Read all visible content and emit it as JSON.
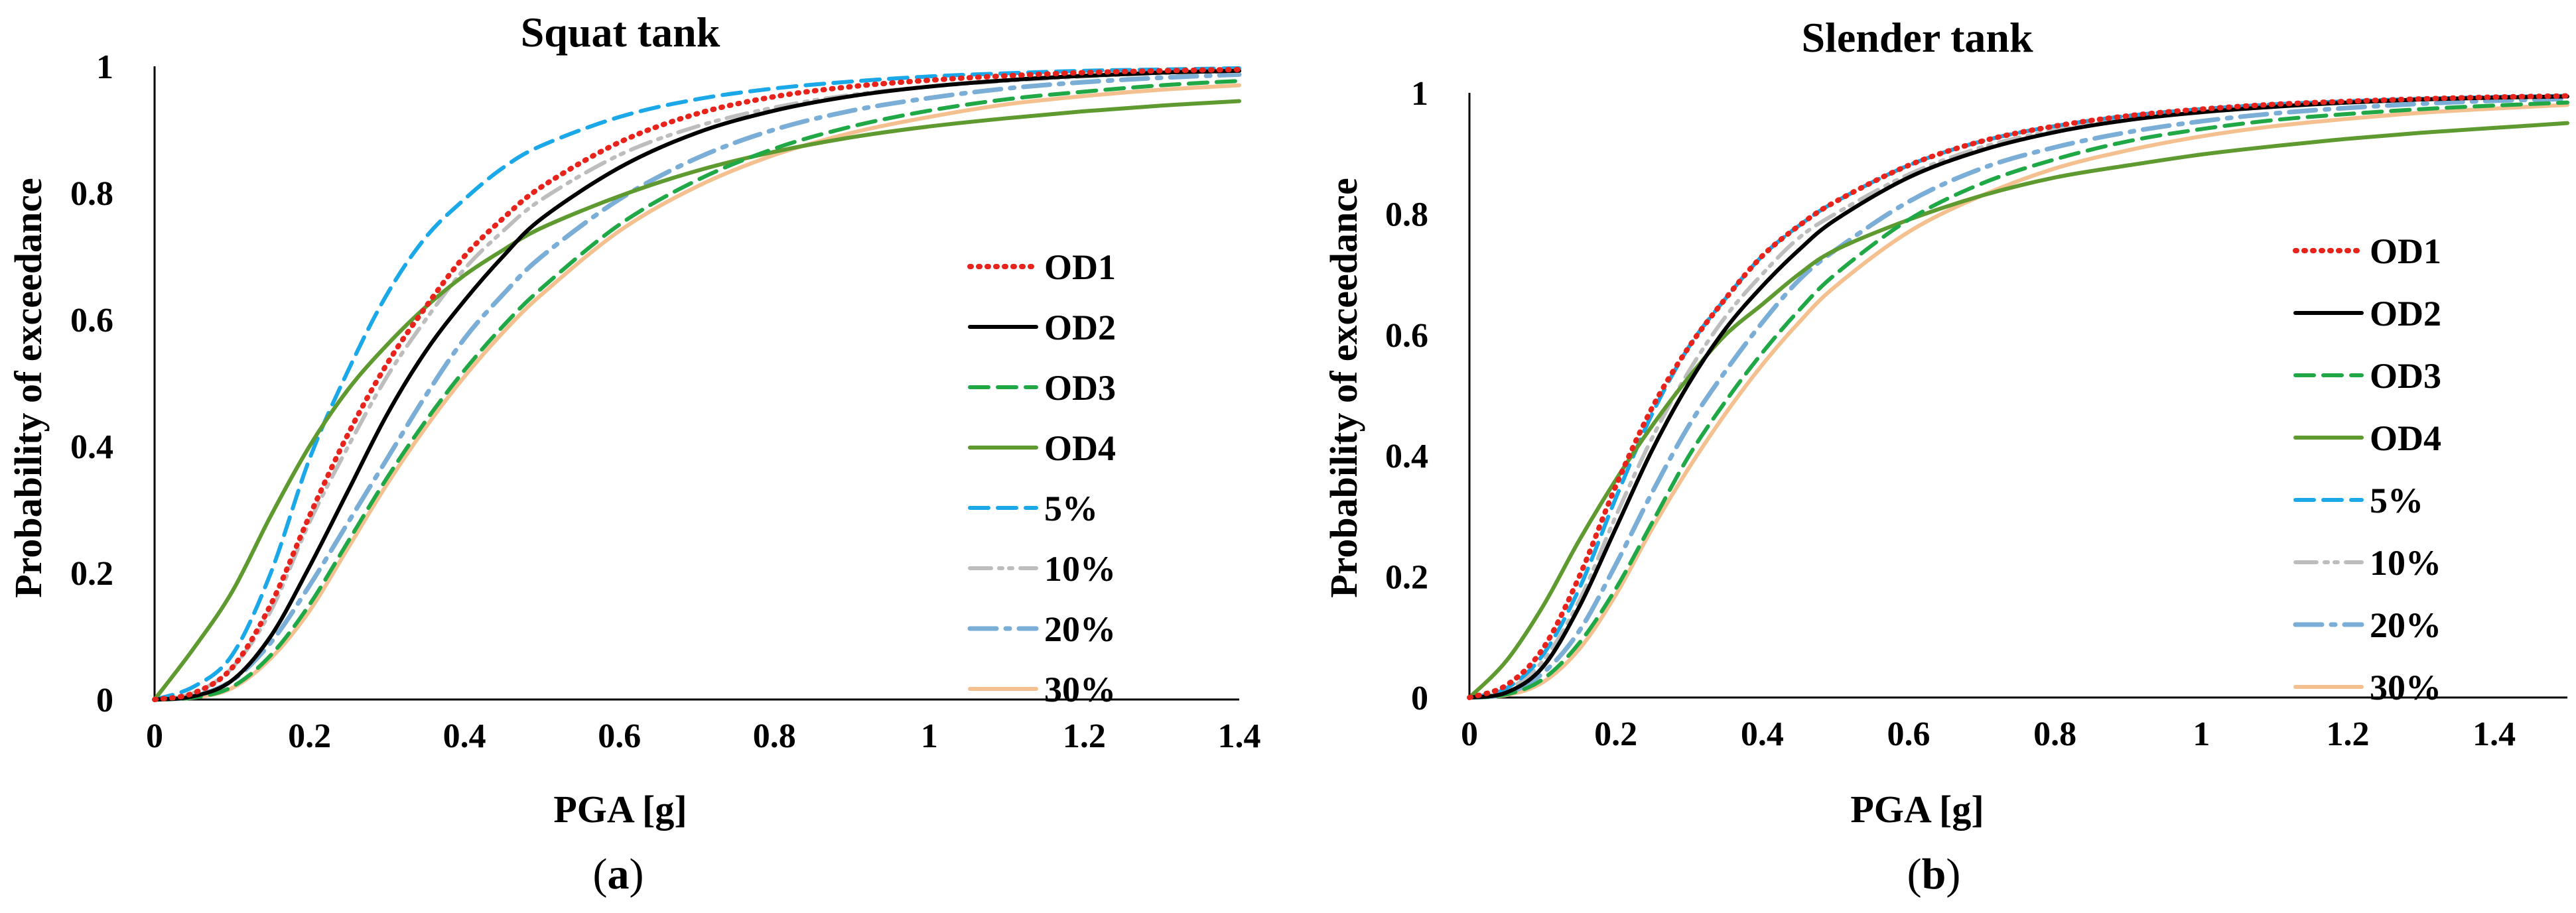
{
  "chart_data": [
    {
      "type": "line",
      "title": "Squat tank",
      "panel_label": "a",
      "xlabel": "PGA [g]",
      "ylabel": "Probability of exceedance",
      "xlim": [
        0,
        1.4
      ],
      "ylim": [
        0,
        1
      ],
      "xticks": [
        "0",
        "0.2",
        "0.4",
        "0.6",
        "0.8",
        "1",
        "1.2",
        "1.4"
      ],
      "yticks": [
        "0",
        "0.2",
        "0.4",
        "0.6",
        "0.8",
        "1"
      ],
      "legend_position": "right",
      "x": [
        0,
        0.05,
        0.1,
        0.15,
        0.2,
        0.25,
        0.3,
        0.35,
        0.4,
        0.45,
        0.5,
        0.6,
        0.7,
        0.8,
        0.9,
        1.0,
        1.1,
        1.2,
        1.3,
        1.4
      ],
      "series": [
        {
          "name": "OD1",
          "color": "#e8231c",
          "style": "dotted",
          "values": [
            0,
            0.01,
            0.05,
            0.15,
            0.29,
            0.42,
            0.53,
            0.62,
            0.7,
            0.76,
            0.81,
            0.88,
            0.925,
            0.952,
            0.968,
            0.978,
            0.985,
            0.99,
            0.993,
            0.995
          ]
        },
        {
          "name": "OD2",
          "color": "#000000",
          "style": "solid",
          "values": [
            0,
            0.005,
            0.03,
            0.1,
            0.21,
            0.33,
            0.45,
            0.55,
            0.63,
            0.7,
            0.76,
            0.84,
            0.895,
            0.93,
            0.953,
            0.968,
            0.978,
            0.985,
            0.99,
            0.993
          ]
        },
        {
          "name": "OD3",
          "color": "#1fa845",
          "style": "dashed",
          "values": [
            0,
            0.003,
            0.02,
            0.07,
            0.15,
            0.25,
            0.35,
            0.44,
            0.52,
            0.59,
            0.65,
            0.75,
            0.82,
            0.87,
            0.905,
            0.93,
            0.948,
            0.96,
            0.97,
            0.977
          ]
        },
        {
          "name": "OD4",
          "color": "#5e9a30",
          "style": "solid",
          "values": [
            0,
            0.08,
            0.17,
            0.29,
            0.4,
            0.49,
            0.56,
            0.62,
            0.67,
            0.71,
            0.745,
            0.795,
            0.835,
            0.865,
            0.888,
            0.905,
            0.918,
            0.929,
            0.938,
            0.945
          ]
        },
        {
          "name": "5%",
          "color": "#1aa8e8",
          "style": "dashed",
          "values": [
            0,
            0.02,
            0.07,
            0.2,
            0.38,
            0.52,
            0.64,
            0.73,
            0.79,
            0.84,
            0.875,
            0.92,
            0.948,
            0.965,
            0.976,
            0.984,
            0.989,
            0.993,
            0.995,
            0.997
          ]
        },
        {
          "name": "10%",
          "color": "#bdbdbd",
          "style": "dashdotdot",
          "values": [
            0,
            0.01,
            0.05,
            0.14,
            0.28,
            0.4,
            0.51,
            0.6,
            0.68,
            0.74,
            0.79,
            0.86,
            0.905,
            0.935,
            0.955,
            0.968,
            0.977,
            0.984,
            0.989,
            0.992
          ]
        },
        {
          "name": "20%",
          "color": "#7aaed6",
          "style": "dashdot",
          "values": [
            0,
            0.005,
            0.03,
            0.09,
            0.18,
            0.28,
            0.38,
            0.48,
            0.57,
            0.64,
            0.7,
            0.79,
            0.855,
            0.9,
            0.93,
            0.95,
            0.965,
            0.975,
            0.982,
            0.987
          ]
        },
        {
          "name": "30%",
          "color": "#f5c08f",
          "style": "solid",
          "values": [
            0,
            0.003,
            0.018,
            0.065,
            0.14,
            0.24,
            0.34,
            0.43,
            0.51,
            0.58,
            0.64,
            0.74,
            0.81,
            0.86,
            0.895,
            0.92,
            0.94,
            0.953,
            0.963,
            0.97
          ]
        }
      ]
    },
    {
      "type": "line",
      "title": "Slender tank",
      "panel_label": "b",
      "xlabel": "PGA [g]",
      "ylabel": "Probability of exceedance",
      "xlim": [
        0,
        1.5
      ],
      "ylim": [
        0,
        1
      ],
      "xticks": [
        "0",
        "0.2",
        "0.4",
        "0.6",
        "0.8",
        "1",
        "1.2",
        "1.4"
      ],
      "yticks": [
        "0",
        "0.2",
        "0.4",
        "0.6",
        "0.8",
        "1"
      ],
      "legend_position": "right",
      "x": [
        0,
        0.05,
        0.1,
        0.15,
        0.2,
        0.25,
        0.3,
        0.35,
        0.4,
        0.45,
        0.5,
        0.6,
        0.7,
        0.8,
        0.9,
        1.0,
        1.1,
        1.2,
        1.3,
        1.4,
        1.5
      ],
      "series": [
        {
          "name": "OD1",
          "color": "#e8231c",
          "style": "dotted",
          "values": [
            0,
            0.02,
            0.08,
            0.2,
            0.35,
            0.48,
            0.58,
            0.66,
            0.73,
            0.78,
            0.82,
            0.88,
            0.92,
            0.945,
            0.962,
            0.973,
            0.981,
            0.986,
            0.99,
            0.993,
            0.995
          ]
        },
        {
          "name": "OD2",
          "color": "#000000",
          "style": "solid",
          "values": [
            0,
            0.008,
            0.05,
            0.15,
            0.28,
            0.41,
            0.52,
            0.61,
            0.68,
            0.74,
            0.79,
            0.86,
            0.905,
            0.935,
            0.955,
            0.968,
            0.977,
            0.984,
            0.989,
            0.992,
            0.994
          ]
        },
        {
          "name": "OD3",
          "color": "#1fa845",
          "style": "dashed",
          "values": [
            0,
            0.005,
            0.03,
            0.09,
            0.18,
            0.29,
            0.4,
            0.49,
            0.57,
            0.64,
            0.7,
            0.79,
            0.85,
            0.89,
            0.92,
            0.94,
            0.955,
            0.965,
            0.973,
            0.979,
            0.984
          ]
        },
        {
          "name": "OD4",
          "color": "#5e9a30",
          "style": "solid",
          "values": [
            0,
            0.06,
            0.15,
            0.26,
            0.36,
            0.45,
            0.53,
            0.6,
            0.65,
            0.7,
            0.74,
            0.79,
            0.83,
            0.86,
            0.88,
            0.898,
            0.912,
            0.924,
            0.934,
            0.942,
            0.95
          ]
        },
        {
          "name": "5%",
          "color": "#1aa8e8",
          "style": "dashed",
          "values": [
            0,
            0.015,
            0.07,
            0.18,
            0.33,
            0.47,
            0.58,
            0.66,
            0.73,
            0.78,
            0.82,
            0.88,
            0.92,
            0.945,
            0.962,
            0.973,
            0.981,
            0.986,
            0.99,
            0.993,
            0.995
          ]
        },
        {
          "name": "10%",
          "color": "#bdbdbd",
          "style": "dashdotdot",
          "values": [
            0,
            0.012,
            0.06,
            0.16,
            0.3,
            0.43,
            0.54,
            0.63,
            0.7,
            0.76,
            0.8,
            0.865,
            0.91,
            0.938,
            0.956,
            0.969,
            0.978,
            0.984,
            0.989,
            0.992,
            0.994
          ]
        },
        {
          "name": "20%",
          "color": "#7aaed6",
          "style": "dashdot",
          "values": [
            0,
            0.006,
            0.04,
            0.11,
            0.22,
            0.34,
            0.45,
            0.54,
            0.62,
            0.69,
            0.74,
            0.82,
            0.875,
            0.91,
            0.935,
            0.953,
            0.966,
            0.975,
            0.982,
            0.987,
            0.99
          ]
        },
        {
          "name": "30%",
          "color": "#f5c08f",
          "style": "solid",
          "values": [
            0,
            0.004,
            0.025,
            0.08,
            0.17,
            0.28,
            0.38,
            0.47,
            0.55,
            0.62,
            0.68,
            0.77,
            0.83,
            0.875,
            0.905,
            0.928,
            0.945,
            0.957,
            0.967,
            0.974,
            0.98
          ]
        }
      ]
    }
  ]
}
